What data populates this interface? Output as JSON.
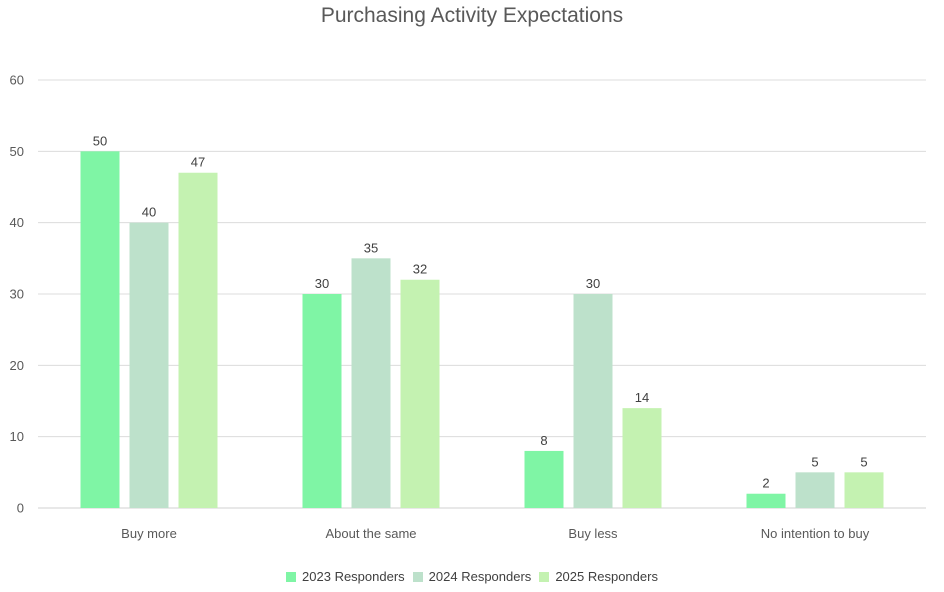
{
  "chart_data": {
    "type": "bar",
    "title": "Purchasing Activity Expectations",
    "xlabel": "",
    "ylabel": "",
    "ylim": [
      0,
      60
    ],
    "yticks": [
      "0",
      "10",
      "20",
      "30",
      "40",
      "50",
      "60"
    ],
    "grid": true,
    "legend_position": "bottom",
    "categories": [
      "Buy more",
      "About the same",
      "Buy less",
      "No intention to buy"
    ],
    "series": [
      {
        "name": "2023 Responders",
        "color": "#7FF5A5",
        "values": [
          50,
          30,
          8,
          2
        ]
      },
      {
        "name": "2024 Responders",
        "color": "#BDE1CB",
        "values": [
          40,
          35,
          30,
          5
        ]
      },
      {
        "name": "2025 Responders",
        "color": "#C4F2B1",
        "values": [
          47,
          32,
          14,
          5
        ]
      }
    ]
  }
}
